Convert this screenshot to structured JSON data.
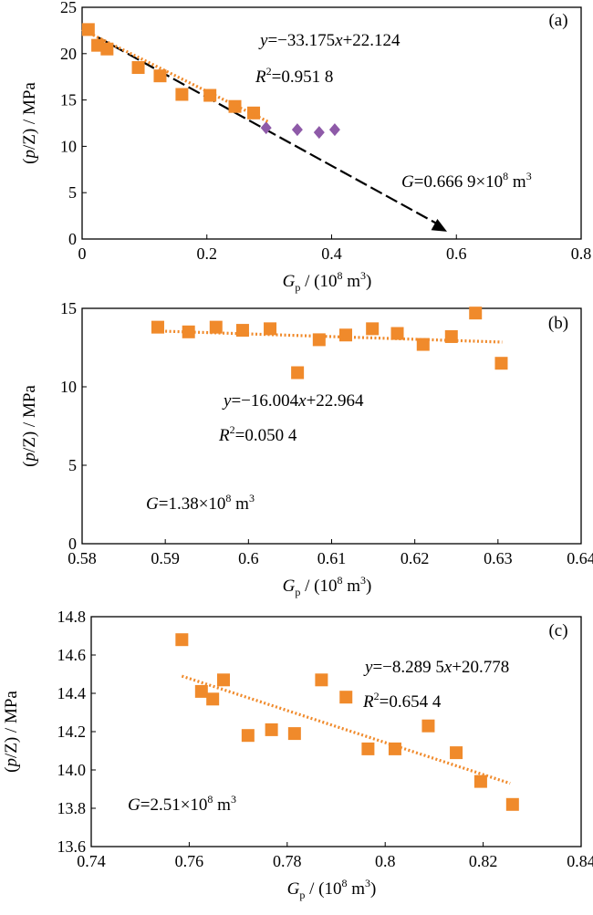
{
  "colors": {
    "orange": "#F08A2B",
    "purple": "#8E5AA8",
    "arrow": "#000000",
    "trend": "#F08A2B"
  },
  "chart_data": [
    {
      "type": "scatter",
      "panel_label": "(a)",
      "xlabel": "G_p / (10^8 m^3)",
      "ylabel": "(p/Z) / MPa",
      "xlim": [
        0,
        0.8
      ],
      "ylim": [
        0,
        25
      ],
      "xticks": [
        "0",
        "0.2",
        "0.4",
        "0.6",
        "0.8"
      ],
      "yticks": [
        "0",
        "5",
        "10",
        "15",
        "20",
        "25"
      ],
      "series": [
        {
          "marker": "square",
          "color": "orange",
          "x": [
            0.01,
            0.025,
            0.04,
            0.09,
            0.125,
            0.16,
            0.205,
            0.245,
            0.275
          ],
          "y": [
            22.6,
            20.9,
            20.5,
            18.5,
            17.6,
            15.6,
            15.5,
            14.3,
            13.6
          ]
        },
        {
          "marker": "diamond",
          "color": "purple",
          "x": [
            0.295,
            0.345,
            0.38,
            0.405
          ],
          "y": [
            12.0,
            11.8,
            11.5,
            11.8
          ]
        }
      ],
      "trendline": {
        "x": [
          0.0,
          0.3
        ],
        "y": [
          22.6,
          12.6
        ]
      },
      "extrapolation": {
        "x": [
          0.0,
          0.585
        ],
        "y": [
          22.7,
          0.8
        ]
      },
      "equation": "y=−33.175x+22.124",
      "r2": "R²=0.951 8",
      "g_text": "G=0.666 9×10⁸ m³"
    },
    {
      "type": "scatter",
      "panel_label": "(b)",
      "xlabel": "G_p / (10^8 m^3)",
      "ylabel": "(p/Z) / MPa",
      "xlim": [
        0.58,
        0.64
      ],
      "ylim": [
        0,
        15
      ],
      "xticks": [
        "0.58",
        "0.59",
        "0.6",
        "0.61",
        "0.62",
        "0.63",
        "0.64"
      ],
      "yticks": [
        "0",
        "5",
        "10",
        "15"
      ],
      "series": [
        {
          "marker": "square",
          "color": "orange",
          "x": [
            0.5891,
            0.5928,
            0.5961,
            0.5993,
            0.6026,
            0.6059,
            0.6085,
            0.6117,
            0.6149,
            0.6179,
            0.621,
            0.6244,
            0.6273,
            0.6304
          ],
          "y": [
            13.8,
            13.5,
            13.8,
            13.6,
            13.7,
            10.9,
            13.0,
            13.3,
            13.7,
            13.4,
            12.7,
            13.2,
            14.7,
            11.5
          ]
        }
      ],
      "trendline": {
        "x": [
          0.5895,
          0.6305
        ],
        "y": [
          13.55,
          12.85
        ]
      },
      "equation": "y=−16.004x+22.964",
      "r2": "R²=0.050 4",
      "g_text": "G=1.38×10⁸ m³"
    },
    {
      "type": "scatter",
      "panel_label": "(c)",
      "xlabel": "G_p / (10^8 m^3)",
      "ylabel": "(p/Z) / MPa",
      "xlim": [
        0.74,
        0.84
      ],
      "ylim": [
        13.6,
        14.8
      ],
      "xticks": [
        "0.74",
        "0.76",
        "0.78",
        "0.8",
        "0.82",
        "0.84"
      ],
      "yticks": [
        "13.6",
        "13.8",
        "14.0",
        "14.2",
        "14.4",
        "14.6",
        "14.8"
      ],
      "series": [
        {
          "marker": "square",
          "color": "orange",
          "x": [
            0.7585,
            0.7625,
            0.7648,
            0.767,
            0.772,
            0.7768,
            0.7815,
            0.787,
            0.792,
            0.7965,
            0.802,
            0.8088,
            0.8145,
            0.8195,
            0.826
          ],
          "y": [
            14.68,
            14.41,
            14.37,
            14.47,
            14.18,
            14.21,
            14.19,
            14.47,
            14.38,
            14.11,
            14.11,
            14.23,
            14.09,
            13.94,
            13.82
          ]
        }
      ],
      "trendline": {
        "x": [
          0.7585,
          0.8255
        ],
        "y": [
          14.49,
          13.93
        ]
      },
      "equation": "y=−8.289 5x+20.778",
      "r2": "R²=0.654 4",
      "g_text": "G=2.51×10⁸ m³"
    }
  ]
}
